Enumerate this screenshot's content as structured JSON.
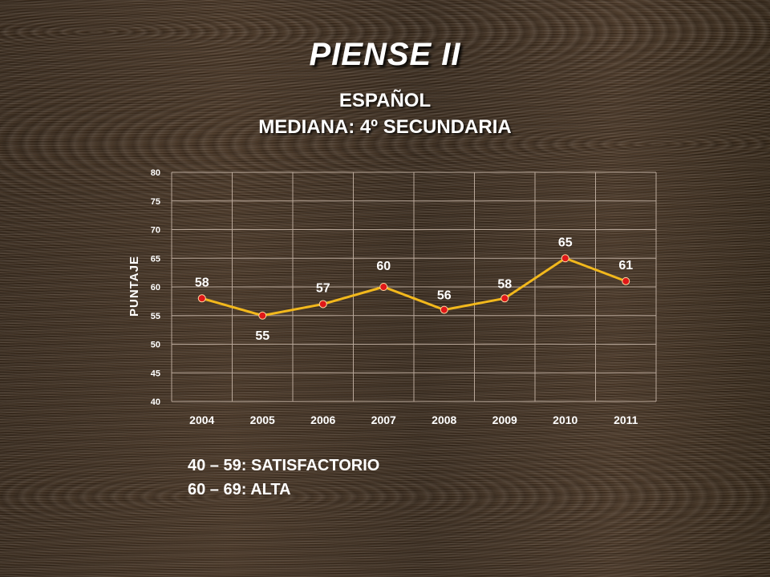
{
  "title": "PIENSE II",
  "subtitle_line1": "ESPAÑOL",
  "subtitle_line2": "MEDIANA: 4º SECUNDARIA",
  "chart_data": {
    "type": "line",
    "x": [
      "2004",
      "2005",
      "2006",
      "2007",
      "2008",
      "2009",
      "2010",
      "2011"
    ],
    "series": [
      {
        "values": [
          58,
          55,
          57,
          60,
          56,
          58,
          65,
          61
        ]
      }
    ],
    "data_labels": [
      "58",
      "55",
      "57",
      "60",
      "56",
      "58",
      "65",
      "61"
    ],
    "ylabel": "PUNTAJE",
    "xlabel": "",
    "ylim": [
      40,
      80
    ],
    "yticks": [
      40,
      45,
      50,
      55,
      60,
      65,
      70,
      75,
      80
    ],
    "grid": true,
    "line_color": "#f2b81c",
    "marker_color": "#e01818"
  },
  "legend_lines": [
    "40 – 59: SATISFACTORIO",
    "60 – 69: ALTA"
  ]
}
